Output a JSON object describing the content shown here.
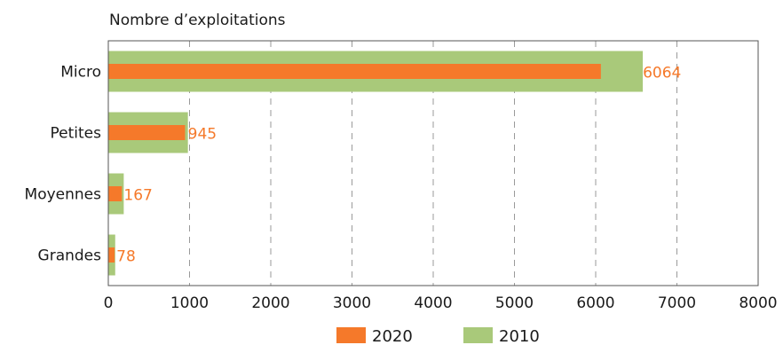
{
  "chart_data": {
    "type": "bar",
    "orientation": "horizontal",
    "ylabel": "Nombre d’exploitations",
    "categories": [
      "Micro",
      "Petites",
      "Moyennes",
      "Grandes"
    ],
    "series": [
      {
        "name": "2010",
        "color": "#a9c97a",
        "values": [
          6580,
          980,
          190,
          85
        ]
      },
      {
        "name": "2020",
        "color": "#f5792a",
        "values": [
          6064,
          945,
          167,
          78
        ],
        "data_labels": [
          "6064",
          "945",
          "167",
          "78"
        ]
      }
    ],
    "xlim": [
      0,
      8000
    ],
    "xticks": [
      "0",
      "1000",
      "2000",
      "3000",
      "4000",
      "5000",
      "6000",
      "7000",
      "8000"
    ],
    "grid": "vertical-dashed",
    "legend": "bottom"
  }
}
